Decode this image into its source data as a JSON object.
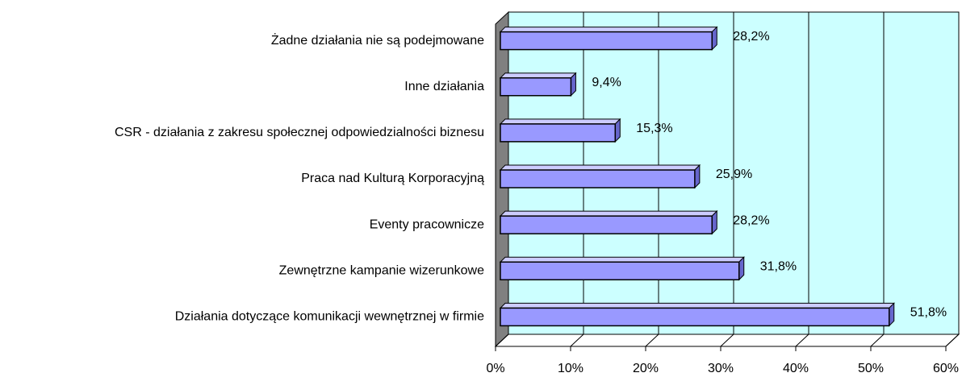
{
  "chart_data": {
    "type": "bar",
    "orientation": "horizontal",
    "categories": [
      "Żadne działania nie są podejmowane",
      "Inne działania",
      "CSR - działania z zakresu społecznej odpowiedzialności biznesu",
      "Praca nad Kulturą Korporacyjną",
      "Eventy pracownicze",
      "Zewnętrzne kampanie wizerunkowe",
      "Działania dotyczące komunikacji wewnętrznej w firmie"
    ],
    "values": [
      28.2,
      9.4,
      15.3,
      25.9,
      28.2,
      31.8,
      51.8
    ],
    "value_labels": [
      "28,2%",
      "9,4%",
      "15,3%",
      "25,9%",
      "28,2%",
      "31,8%",
      "51,8%"
    ],
    "color": "#9999ff",
    "xlim": [
      0,
      60
    ],
    "xticks": [
      {
        "value": 0,
        "label": "0%"
      },
      {
        "value": 10,
        "label": "10%"
      },
      {
        "value": 20,
        "label": "20%"
      },
      {
        "value": 30,
        "label": "30%"
      },
      {
        "value": 40,
        "label": "40%"
      },
      {
        "value": 50,
        "label": "50%"
      },
      {
        "value": 60,
        "label": "60%"
      }
    ],
    "grid": true
  }
}
